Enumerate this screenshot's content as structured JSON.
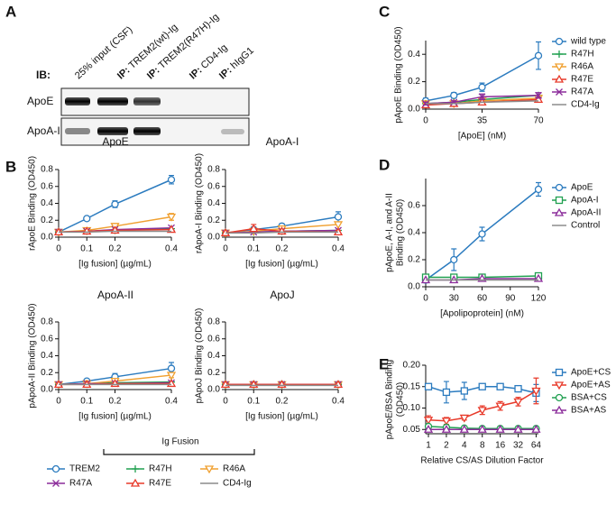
{
  "panel_labels": [
    "A",
    "B",
    "C",
    "D",
    "E"
  ],
  "blot": {
    "ib_label": "IB:",
    "lanes": [
      {
        "name": "25% input (CSF)"
      },
      {
        "prefix": "IP:",
        "name": "TREM2(wt)-Ig"
      },
      {
        "prefix": "IP:",
        "name": "TREM2(R47H)-Ig"
      },
      {
        "prefix": "IP:",
        "name": "CD4-Ig"
      },
      {
        "prefix": "IP:",
        "name": "hIgG1"
      }
    ],
    "rows": [
      "ApoE",
      "ApoA-I"
    ]
  },
  "ig_fusion_legend": {
    "title": "Ig Fusion",
    "entries": [
      {
        "name": "TREM2",
        "color": "#2b7bbf",
        "marker": "circle"
      },
      {
        "name": "R47H",
        "color": "#20a050",
        "marker": "plus"
      },
      {
        "name": "R46A",
        "color": "#f0a030",
        "marker": "tri-down"
      },
      {
        "name": "R47A",
        "color": "#8b2c9a",
        "marker": "cross"
      },
      {
        "name": "R47E",
        "color": "#e83a2a",
        "marker": "tri-up"
      },
      {
        "name": "CD4-Ig",
        "color": "#8c8c8c",
        "marker": "none"
      }
    ]
  },
  "chart_data": [
    {
      "type": "line",
      "title": "ApoE",
      "ylabel": "rApoE Binding (OD450)",
      "xlabel": "[Ig fusion] (µg/mL)",
      "x": [
        0,
        0.1,
        0.2,
        0.4
      ],
      "xlim": [
        0,
        0.4
      ],
      "xticks": [
        0,
        0.1,
        0.2,
        0.4
      ],
      "ylim": [
        0,
        0.8
      ],
      "yticks": [
        {
          "value": 0,
          "label": "0.0"
        },
        0.2,
        0.4,
        0.6,
        0.8
      ],
      "series": [
        {
          "color": "#2b7bbf",
          "marker": "circle",
          "values": [
            0.06,
            0.22,
            0.39,
            0.68
          ],
          "errors": [
            0.01,
            0.02,
            0.04,
            0.05
          ]
        },
        {
          "color": "#20a050",
          "marker": "plus",
          "values": [
            0.06,
            0.07,
            0.08,
            0.1
          ]
        },
        {
          "color": "#f0a030",
          "marker": "tri-down",
          "values": [
            0.06,
            0.08,
            0.13,
            0.24
          ],
          "errors": [
            0.01,
            0.02,
            0.03,
            0.04
          ]
        },
        {
          "color": "#8b2c9a",
          "marker": "cross",
          "values": [
            0.06,
            0.07,
            0.09,
            0.11
          ]
        },
        {
          "color": "#e83a2a",
          "marker": "tri-up",
          "values": [
            0.06,
            0.07,
            0.08,
            0.09
          ]
        },
        {
          "color": "#8c8c8c",
          "marker": "none",
          "values": [
            0.06,
            0.06,
            0.07,
            0.07
          ]
        }
      ]
    },
    {
      "type": "line",
      "title": "ApoA-I",
      "ylabel": "rApoA-I Binding (OD450)",
      "xlabel": "[Ig fusion] (µg/mL)",
      "x": [
        0,
        0.1,
        0.2,
        0.4
      ],
      "xlim": [
        0,
        0.4
      ],
      "xticks": [
        0,
        0.1,
        0.2,
        0.4
      ],
      "ylim": [
        0,
        0.8
      ],
      "yticks": [
        {
          "value": 0,
          "label": "0.0"
        },
        0.2,
        0.4,
        0.6,
        0.8
      ],
      "series": [
        {
          "color": "#2b7bbf",
          "marker": "circle",
          "values": [
            0.05,
            0.09,
            0.13,
            0.24
          ],
          "errors": [
            0.01,
            0.03,
            0.03,
            0.06
          ]
        },
        {
          "color": "#20a050",
          "marker": "plus",
          "values": [
            0.05,
            0.06,
            0.07,
            0.08
          ]
        },
        {
          "color": "#f0a030",
          "marker": "tri-down",
          "values": [
            0.05,
            0.07,
            0.1,
            0.15
          ]
        },
        {
          "color": "#8b2c9a",
          "marker": "cross",
          "values": [
            0.05,
            0.06,
            0.07,
            0.08
          ]
        },
        {
          "color": "#e83a2a",
          "marker": "tri-up",
          "values": [
            0.05,
            0.1,
            0.07,
            0.06
          ],
          "errors": [
            0.01,
            0.05,
            0.02,
            0.02
          ]
        },
        {
          "color": "#8c8c8c",
          "marker": "none",
          "values": [
            0.05,
            0.05,
            0.06,
            0.06
          ]
        }
      ]
    },
    {
      "type": "line",
      "title": "ApoA-II",
      "ylabel": "pApoA-II Binding (OD450)",
      "xlabel": "[Ig fusion] (µg/mL)",
      "x": [
        0,
        0.1,
        0.2,
        0.4
      ],
      "xlim": [
        0,
        0.4
      ],
      "xticks": [
        0,
        0.1,
        0.2,
        0.4
      ],
      "ylim": [
        0,
        0.8
      ],
      "yticks": [
        {
          "value": 0,
          "label": "0.0"
        },
        0.2,
        0.4,
        0.6,
        0.8
      ],
      "series": [
        {
          "color": "#2b7bbf",
          "marker": "circle",
          "values": [
            0.06,
            0.1,
            0.15,
            0.25
          ],
          "errors": [
            0.01,
            0.02,
            0.04,
            0.07
          ]
        },
        {
          "color": "#20a050",
          "marker": "plus",
          "values": [
            0.06,
            0.07,
            0.08,
            0.09
          ]
        },
        {
          "color": "#f0a030",
          "marker": "tri-down",
          "values": [
            0.06,
            0.07,
            0.1,
            0.17
          ],
          "errors": [
            0.01,
            0.01,
            0.02,
            0.03
          ]
        },
        {
          "color": "#8b2c9a",
          "marker": "cross",
          "values": [
            0.06,
            0.07,
            0.07,
            0.08
          ]
        },
        {
          "color": "#e83a2a",
          "marker": "tri-up",
          "values": [
            0.06,
            0.06,
            0.07,
            0.07
          ]
        },
        {
          "color": "#8c8c8c",
          "marker": "none",
          "values": [
            0.06,
            0.06,
            0.06,
            0.06
          ]
        }
      ]
    },
    {
      "type": "line",
      "title": "ApoJ",
      "ylabel": "pApoJ Binding (OD450)",
      "xlabel": "[Ig fusion] (µg/mL)",
      "x": [
        0,
        0.1,
        0.2,
        0.4
      ],
      "xlim": [
        0,
        0.4
      ],
      "xticks": [
        0,
        0.1,
        0.2,
        0.4
      ],
      "ylim": [
        0,
        0.8
      ],
      "yticks": [
        {
          "value": 0,
          "label": "0.0"
        },
        0.2,
        0.4,
        0.6,
        0.8
      ],
      "series": [
        {
          "color": "#2b7bbf",
          "marker": "circle",
          "values": [
            0.06,
            0.06,
            0.06,
            0.06
          ]
        },
        {
          "color": "#20a050",
          "marker": "plus",
          "values": [
            0.06,
            0.06,
            0.06,
            0.06
          ]
        },
        {
          "color": "#f0a030",
          "marker": "tri-down",
          "values": [
            0.06,
            0.06,
            0.06,
            0.06
          ]
        },
        {
          "color": "#8b2c9a",
          "marker": "cross",
          "values": [
            0.06,
            0.06,
            0.06,
            0.06
          ]
        },
        {
          "color": "#e83a2a",
          "marker": "tri-up",
          "values": [
            0.06,
            0.06,
            0.06,
            0.06
          ]
        },
        {
          "color": "#8c8c8c",
          "marker": "none",
          "values": [
            0.05,
            0.05,
            0.05,
            0.05
          ]
        }
      ]
    },
    {
      "type": "line",
      "ylabel": "pApoE Binding (OD450)",
      "xlabel": "[ApoE] (nM)",
      "x": [
        0,
        17.5,
        35,
        70
      ],
      "xlim": [
        0,
        70
      ],
      "xticks": [
        0,
        35,
        70
      ],
      "ylim": [
        0,
        0.5
      ],
      "yticks": [
        {
          "value": 0,
          "label": "0.0"
        },
        0.2,
        0.4
      ],
      "series": [
        {
          "name": "wild type",
          "color": "#2b7bbf",
          "marker": "circle",
          "values": [
            0.06,
            0.1,
            0.16,
            0.39
          ],
          "errors": [
            0.02,
            0.02,
            0.03,
            0.1
          ]
        },
        {
          "name": "R47H",
          "color": "#20a050",
          "marker": "plus",
          "values": [
            0.04,
            0.05,
            0.07,
            0.1
          ]
        },
        {
          "name": "R46A",
          "color": "#f0a030",
          "marker": "tri-down",
          "values": [
            0.04,
            0.04,
            0.06,
            0.08
          ]
        },
        {
          "name": "R47E",
          "color": "#e83a2a",
          "marker": "tri-up",
          "values": [
            0.03,
            0.04,
            0.05,
            0.07
          ]
        },
        {
          "name": "R47A",
          "color": "#8b2c9a",
          "marker": "cross",
          "values": [
            0.04,
            0.05,
            0.09,
            0.1
          ],
          "errors": [
            0.01,
            0.01,
            0.02,
            0.02
          ]
        },
        {
          "name": "CD4-Ig",
          "color": "#8c8c8c",
          "marker": "none",
          "values": [
            0.04,
            0.04,
            0.05,
            0.06
          ]
        }
      ]
    },
    {
      "type": "line",
      "ylabel": [
        "pApoE, A-I, and A-II",
        "Binding (OD450)"
      ],
      "xlabel": "[Apolipoprotein] (nM)",
      "x": [
        0,
        30,
        60,
        120
      ],
      "xlim": [
        0,
        120
      ],
      "xticks": [
        0,
        30,
        60,
        90,
        120
      ],
      "ylim": [
        0,
        0.8
      ],
      "yticks": [
        {
          "value": 0,
          "label": "0.0"
        },
        0.2,
        0.4,
        0.6
      ],
      "series": [
        {
          "name": "ApoE",
          "color": "#2b7bbf",
          "marker": "circle",
          "values": [
            0.05,
            0.2,
            0.39,
            0.72
          ],
          "errors": [
            0.02,
            0.08,
            0.05,
            0.05
          ]
        },
        {
          "name": "ApoA-I",
          "color": "#20a050",
          "marker": "square",
          "values": [
            0.07,
            0.07,
            0.07,
            0.08
          ]
        },
        {
          "name": "ApoA-II",
          "color": "#8b2c9a",
          "marker": "tri-up",
          "values": [
            0.05,
            0.05,
            0.06,
            0.06
          ]
        },
        {
          "name": "Control",
          "color": "#8c8c8c",
          "marker": "none",
          "values": [
            0.05,
            0.05,
            0.05,
            0.05
          ]
        }
      ]
    },
    {
      "type": "line",
      "xscale": "log2",
      "ylabel": [
        "pApoE/BSA Binding",
        "(OD450)"
      ],
      "xlabel": "Relative CS/AS Dilution Factor",
      "x": [
        1,
        2,
        4,
        8,
        16,
        32,
        64
      ],
      "xlim": [
        0.9,
        70
      ],
      "xticks": [
        1,
        2,
        4,
        8,
        16,
        32,
        64
      ],
      "ylim": [
        0.04,
        0.2
      ],
      "yticks": [
        0.05,
        {
          "value": 0.1,
          "label": "0.10"
        },
        0.15,
        {
          "value": 0.2,
          "label": "0.20"
        }
      ],
      "series": [
        {
          "name": "ApoE+CS",
          "color": "#2b7bbf",
          "marker": "square",
          "values": [
            0.15,
            0.137,
            0.14,
            0.15,
            0.15,
            0.145,
            0.135
          ],
          "errors": [
            0.005,
            0.025,
            0.02,
            0.003,
            0.003,
            0.005,
            0.02
          ]
        },
        {
          "name": "ApoE+AS",
          "color": "#e83a2a",
          "marker": "tri-down",
          "values": [
            0.072,
            0.07,
            0.077,
            0.095,
            0.105,
            0.115,
            0.14
          ],
          "errors": [
            0.01,
            0.008,
            0.005,
            0.01,
            0.01,
            0.01,
            0.03
          ]
        },
        {
          "name": "BSA+CS",
          "color": "#20a050",
          "marker": "circle",
          "values": [
            0.057,
            0.055,
            0.053,
            0.052,
            0.052,
            0.052,
            0.052
          ]
        },
        {
          "name": "BSA+AS",
          "color": "#8b2c9a",
          "marker": "tri-up",
          "values": [
            0.05,
            0.05,
            0.05,
            0.05,
            0.05,
            0.05,
            0.05
          ]
        }
      ]
    }
  ]
}
